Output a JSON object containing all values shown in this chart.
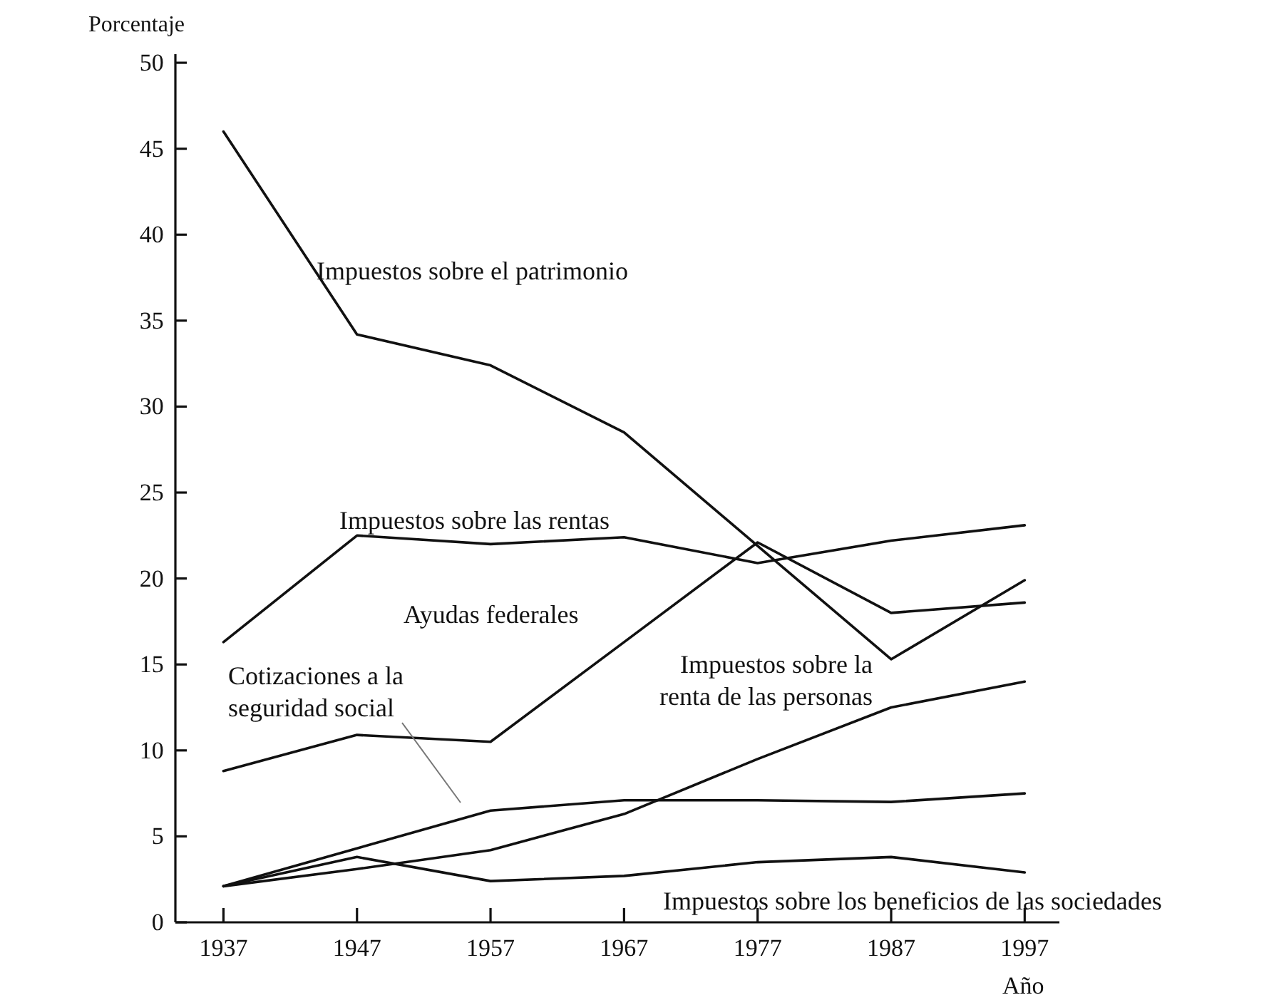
{
  "chart_data": {
    "type": "line",
    "ylabel": "Porcentaje",
    "xlabel": "Año",
    "x": [
      1937,
      1947,
      1957,
      1967,
      1977,
      1987,
      1997
    ],
    "xlim": [
      1933.4,
      1999.6
    ],
    "xticks": [
      1937,
      1947,
      1957,
      1967,
      1977,
      1987,
      1997
    ],
    "ylim": [
      0,
      50.5
    ],
    "yticks": [
      0,
      5,
      10,
      15,
      20,
      25,
      30,
      35,
      40,
      45,
      50
    ],
    "grid": false,
    "legend": false,
    "marker": "none",
    "line_style": "solid",
    "series": [
      {
        "name": "Impuestos sobre el patrimonio",
        "color": "#111111",
        "values": [
          46.0,
          34.2,
          32.4,
          28.5,
          21.9,
          15.3,
          19.9
        ]
      },
      {
        "name": "Impuestos sobre las rentas",
        "color": "#111111",
        "values": [
          16.3,
          22.5,
          22.0,
          22.4,
          20.9,
          22.2,
          23.1
        ]
      },
      {
        "name": "Ayudas federales",
        "color": "#111111",
        "values": [
          8.8,
          10.9,
          10.5,
          16.3,
          22.1,
          18.0,
          18.6
        ]
      },
      {
        "name": "Cotizaciones a la\nseguridad social",
        "color": "#111111",
        "values": [
          2.1,
          4.3,
          6.5,
          7.1,
          7.1,
          7.0,
          7.5
        ]
      },
      {
        "name": "Impuestos sobre la\nrenta de las personas",
        "color": "#111111",
        "values": [
          2.1,
          3.1,
          4.2,
          6.3,
          9.5,
          12.5,
          14.0
        ]
      },
      {
        "name": "Impuestos sobre los beneficios de las sociedades",
        "color": "#111111",
        "values": [
          2.1,
          3.8,
          2.4,
          2.7,
          3.5,
          3.8,
          2.9
        ]
      }
    ]
  }
}
